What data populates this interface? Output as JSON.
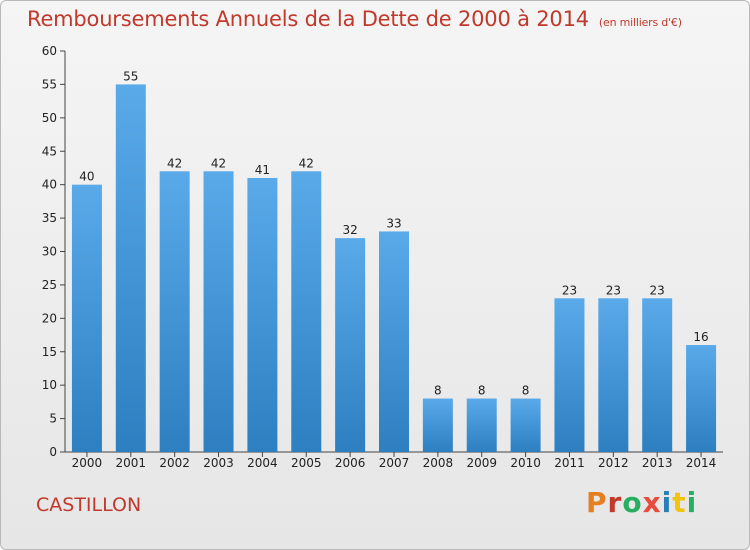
{
  "header": {
    "title": "Remboursements Annuels de la Dette de 2000 à 2014",
    "unit": "(en milliers d'€)"
  },
  "footer": {
    "city": "CASTILLON",
    "brand": "Proxiti"
  },
  "colors": {
    "title": "#c0392b",
    "bar_top": "#5aaaea",
    "bar_bottom": "#2d7fc0",
    "brand_letters": [
      "#e67e22",
      "#c0392b",
      "#27ae60",
      "#e74c3c",
      "#2980b9",
      "#f1c40f",
      "#27ae60"
    ]
  },
  "chart_data": {
    "type": "bar",
    "title": "Remboursements Annuels de la Dette de 2000 à 2014",
    "categories": [
      "2000",
      "2001",
      "2002",
      "2003",
      "2004",
      "2005",
      "2006",
      "2007",
      "2008",
      "2009",
      "2010",
      "2011",
      "2012",
      "2013",
      "2014"
    ],
    "values": [
      40,
      55,
      42,
      42,
      41,
      42,
      32,
      33,
      8,
      8,
      8,
      23,
      23,
      23,
      16
    ],
    "ylim": [
      0,
      60
    ],
    "yticks": [
      0,
      5,
      10,
      15,
      20,
      25,
      30,
      35,
      40,
      45,
      50,
      55,
      60
    ],
    "xlabel": "",
    "ylabel": "",
    "grid": false,
    "data_labels": true
  }
}
